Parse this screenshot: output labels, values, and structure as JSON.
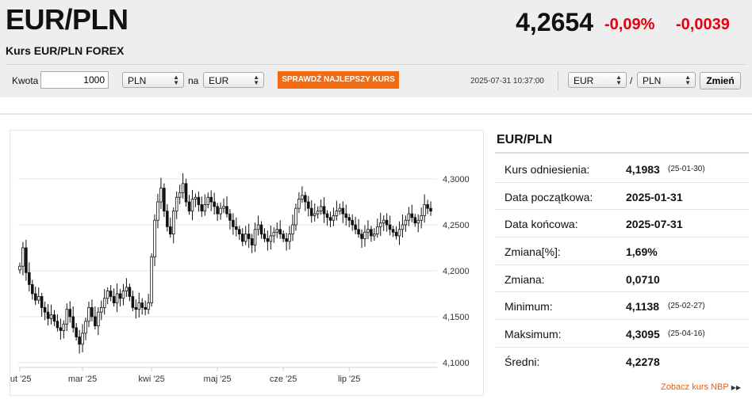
{
  "header": {
    "title": "EUR/PLN",
    "subtitle": "Kurs EUR/PLN FOREX",
    "price": "4,2654",
    "change_pct": "-0,09%",
    "change_abs": "-0,0039"
  },
  "toolbar": {
    "amount_label": "Kwota",
    "amount_value": "1000",
    "from_currency": "PLN",
    "na_label": "na",
    "to_currency": "EUR",
    "best_rate_button": "SPRAWDŹ NAJLEPSZY KURS",
    "timestamp": "2025-07-31 10:37:00",
    "pair_base": "EUR",
    "slash": "/",
    "pair_quote": "PLN",
    "change_button": "Zmień"
  },
  "sidebar": {
    "title": "EUR/PLN",
    "rows": [
      {
        "label": "Kurs odniesienia:",
        "value": "4,1983",
        "date": "(25-01-30)"
      },
      {
        "label": "Data początkowa:",
        "value": "2025-01-31",
        "date": ""
      },
      {
        "label": "Data końcowa:",
        "value": "2025-07-31",
        "date": ""
      },
      {
        "label": "Zmiana[%]:",
        "value": "1,69%",
        "date": ""
      },
      {
        "label": "Zmiana:",
        "value": "0,0710",
        "date": ""
      },
      {
        "label": "Minimum:",
        "value": "4,1138",
        "date": "(25-02-27)"
      },
      {
        "label": "Maksimum:",
        "value": "4,3095",
        "date": "(25-04-16)"
      },
      {
        "label": "Średni:",
        "value": "4,2278",
        "date": ""
      }
    ],
    "nbp_link": "Zobacz kurs NBP",
    "nbp_icon": "double-chevron-right-icon"
  },
  "colors": {
    "accent": "#f26b11",
    "negative": "#e3000f",
    "candle_up": "#ffffff",
    "candle_down": "#111111"
  },
  "chart_data": {
    "type": "candlestick",
    "title": "",
    "xlabel": "",
    "ylabel": "",
    "y_ticks": [
      4.1,
      4.15,
      4.2,
      4.25,
      4.3
    ],
    "y_tick_labels": [
      "4,1000",
      "4,1500",
      "4,2000",
      "4,2500",
      "4,3000"
    ],
    "x_tick_labels": [
      "lut '25",
      "mar '25",
      "kwi '25",
      "maj '25",
      "cze '25",
      "lip '25"
    ],
    "x_ticks_index": [
      0,
      20,
      42,
      63,
      84,
      105
    ],
    "ylim": [
      4.1,
      4.3
    ],
    "grid": true,
    "close": [
      4.205,
      4.225,
      4.198,
      4.185,
      4.175,
      4.168,
      4.172,
      4.16,
      4.155,
      4.148,
      4.152,
      4.145,
      4.138,
      4.135,
      4.142,
      4.158,
      4.15,
      4.138,
      4.128,
      4.12,
      4.132,
      4.145,
      4.16,
      4.15,
      4.14,
      4.155,
      4.16,
      4.17,
      4.178,
      4.172,
      4.165,
      4.175,
      4.17,
      4.178,
      4.182,
      4.172,
      4.16,
      4.158,
      4.165,
      4.16,
      4.158,
      4.165,
      4.215,
      4.255,
      4.275,
      4.29,
      4.265,
      4.248,
      4.24,
      4.265,
      4.28,
      4.285,
      4.295,
      4.275,
      4.265,
      4.278,
      4.28,
      4.272,
      4.265,
      4.272,
      4.28,
      4.275,
      4.27,
      4.262,
      4.268,
      4.27,
      4.262,
      4.255,
      4.248,
      4.245,
      4.24,
      4.232,
      4.24,
      4.235,
      4.228,
      4.245,
      4.25,
      4.24,
      4.235,
      4.232,
      4.238,
      4.242,
      4.245,
      4.24,
      4.235,
      4.232,
      4.24,
      4.25,
      4.268,
      4.278,
      4.282,
      4.275,
      4.268,
      4.26,
      4.262,
      4.265,
      4.27,
      4.262,
      4.258,
      4.255,
      4.26,
      4.265,
      4.268,
      4.262,
      4.258,
      4.255,
      4.25,
      4.245,
      4.24,
      4.235,
      4.242,
      4.245,
      4.238,
      4.24,
      4.248,
      4.252,
      4.255,
      4.25,
      4.245,
      4.242,
      4.238,
      4.245,
      4.25,
      4.255,
      4.262,
      4.258,
      4.252,
      4.255,
      4.26,
      4.272,
      4.268,
      4.265
    ]
  }
}
